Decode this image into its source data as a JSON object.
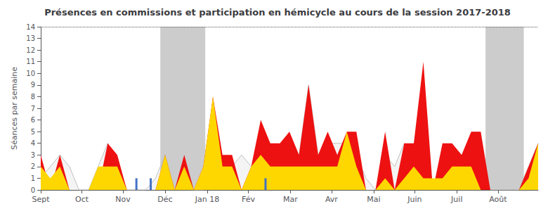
{
  "chart_data": {
    "type": "area",
    "title": "Présences en commissions et participation en hémicycle au cours de la session 2017-2018",
    "ylabel": "Séances par semaine",
    "x": [
      0,
      1,
      2,
      3,
      4,
      5,
      6,
      7,
      8,
      9,
      10,
      11,
      12,
      13,
      14,
      15,
      16,
      17,
      18,
      19,
      20,
      21,
      22,
      23,
      24,
      25,
      26,
      27,
      28,
      29,
      30,
      31,
      32,
      33,
      34,
      35,
      36,
      37,
      38,
      39,
      40,
      41,
      42,
      43,
      44,
      45,
      46,
      47,
      48,
      49,
      50,
      51,
      52
    ],
    "xlim": [
      0,
      52
    ],
    "xticks": [
      {
        "value": 0,
        "label": "Sept"
      },
      {
        "value": 4.3,
        "label": "Oct"
      },
      {
        "value": 8.6,
        "label": "Nov"
      },
      {
        "value": 13.0,
        "label": "Déc"
      },
      {
        "value": 17.4,
        "label": "Jan 18"
      },
      {
        "value": 21.7,
        "label": "Fév"
      },
      {
        "value": 26.1,
        "label": "Mar"
      },
      {
        "value": 30.4,
        "label": "Avr"
      },
      {
        "value": 34.8,
        "label": "Mai"
      },
      {
        "value": 39.1,
        "label": "Juin"
      },
      {
        "value": 43.5,
        "label": "Juil"
      },
      {
        "value": 47.8,
        "label": "Août"
      }
    ],
    "ylim": [
      0,
      14
    ],
    "yticks": [
      0,
      1,
      2,
      3,
      4,
      5,
      6,
      7,
      8,
      9,
      10,
      11,
      12,
      13,
      14
    ],
    "grid": false,
    "series": [
      {
        "type": "line",
        "color": "#C0C0C0",
        "values": [
          1,
          2,
          3,
          2,
          0,
          0,
          2,
          4,
          2,
          0,
          0,
          0,
          1,
          3,
          0,
          1,
          0,
          0,
          4,
          2,
          2,
          3,
          2,
          2,
          3,
          0,
          4,
          3,
          9,
          3,
          4,
          4,
          4,
          3,
          1,
          0,
          3,
          2,
          4,
          3,
          3,
          0,
          3,
          2,
          3,
          4,
          4,
          0,
          0,
          0,
          0,
          2,
          4
        ]
      },
      {
        "type": "area",
        "color": "#EE1111",
        "values": [
          3,
          0,
          3,
          0,
          0,
          0,
          0,
          4,
          3,
          0,
          0,
          0,
          0,
          3,
          0,
          3,
          0,
          2,
          8,
          3,
          3,
          0,
          2,
          6,
          4,
          4,
          5,
          3,
          9,
          3,
          5,
          3,
          5,
          5,
          0,
          0,
          5,
          0,
          4,
          4,
          11,
          0,
          4,
          4,
          3,
          5,
          5,
          0,
          0,
          0,
          0,
          2,
          4
        ]
      },
      {
        "type": "area",
        "color": "#FFD700",
        "values": [
          2,
          1,
          2,
          0,
          0,
          0,
          2,
          2,
          2,
          0,
          0,
          0,
          0,
          3,
          0,
          2,
          0,
          2,
          8,
          2,
          2,
          0,
          2,
          3,
          2,
          2,
          2,
          2,
          2,
          2,
          2,
          2,
          5,
          2,
          0,
          0,
          1,
          0,
          1,
          2,
          1,
          1,
          1,
          2,
          2,
          2,
          0,
          0,
          0,
          0,
          0,
          1,
          4
        ]
      },
      {
        "type": "bar",
        "color": "#4472C4",
        "x": [
          10.0,
          11.5,
          23.5
        ],
        "values": [
          1,
          1,
          1
        ]
      }
    ],
    "shaded_regions": [
      [
        12.5,
        17.2
      ],
      [
        46.5,
        50.5
      ]
    ],
    "shade_color": "#BBBBBB",
    "reference_line": {
      "value": 14,
      "line_style": "dotted"
    }
  }
}
